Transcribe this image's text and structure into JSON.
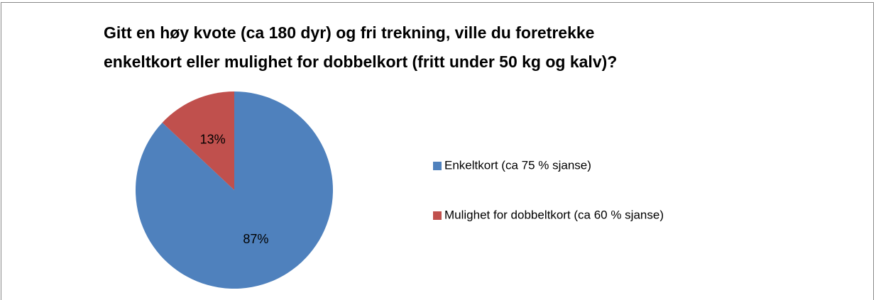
{
  "chart_data": {
    "type": "pie",
    "title": [
      "Gitt en høy kvote (ca 180 dyr) og fri trekning, ville du foretrekke",
      "enkeltkort eller mulighet for dobbelkort (fritt under 50 kg og kalv)?"
    ],
    "categories": [
      "Enkeltkort (ca 75 % sjanse)",
      "Mulighet for dobbeltkort (ca 60 % sjanse)"
    ],
    "values": [
      87,
      13
    ],
    "value_labels": [
      "87%",
      "13%"
    ],
    "colors": [
      "#4f81bd",
      "#c0504d"
    ],
    "legend": "right"
  }
}
